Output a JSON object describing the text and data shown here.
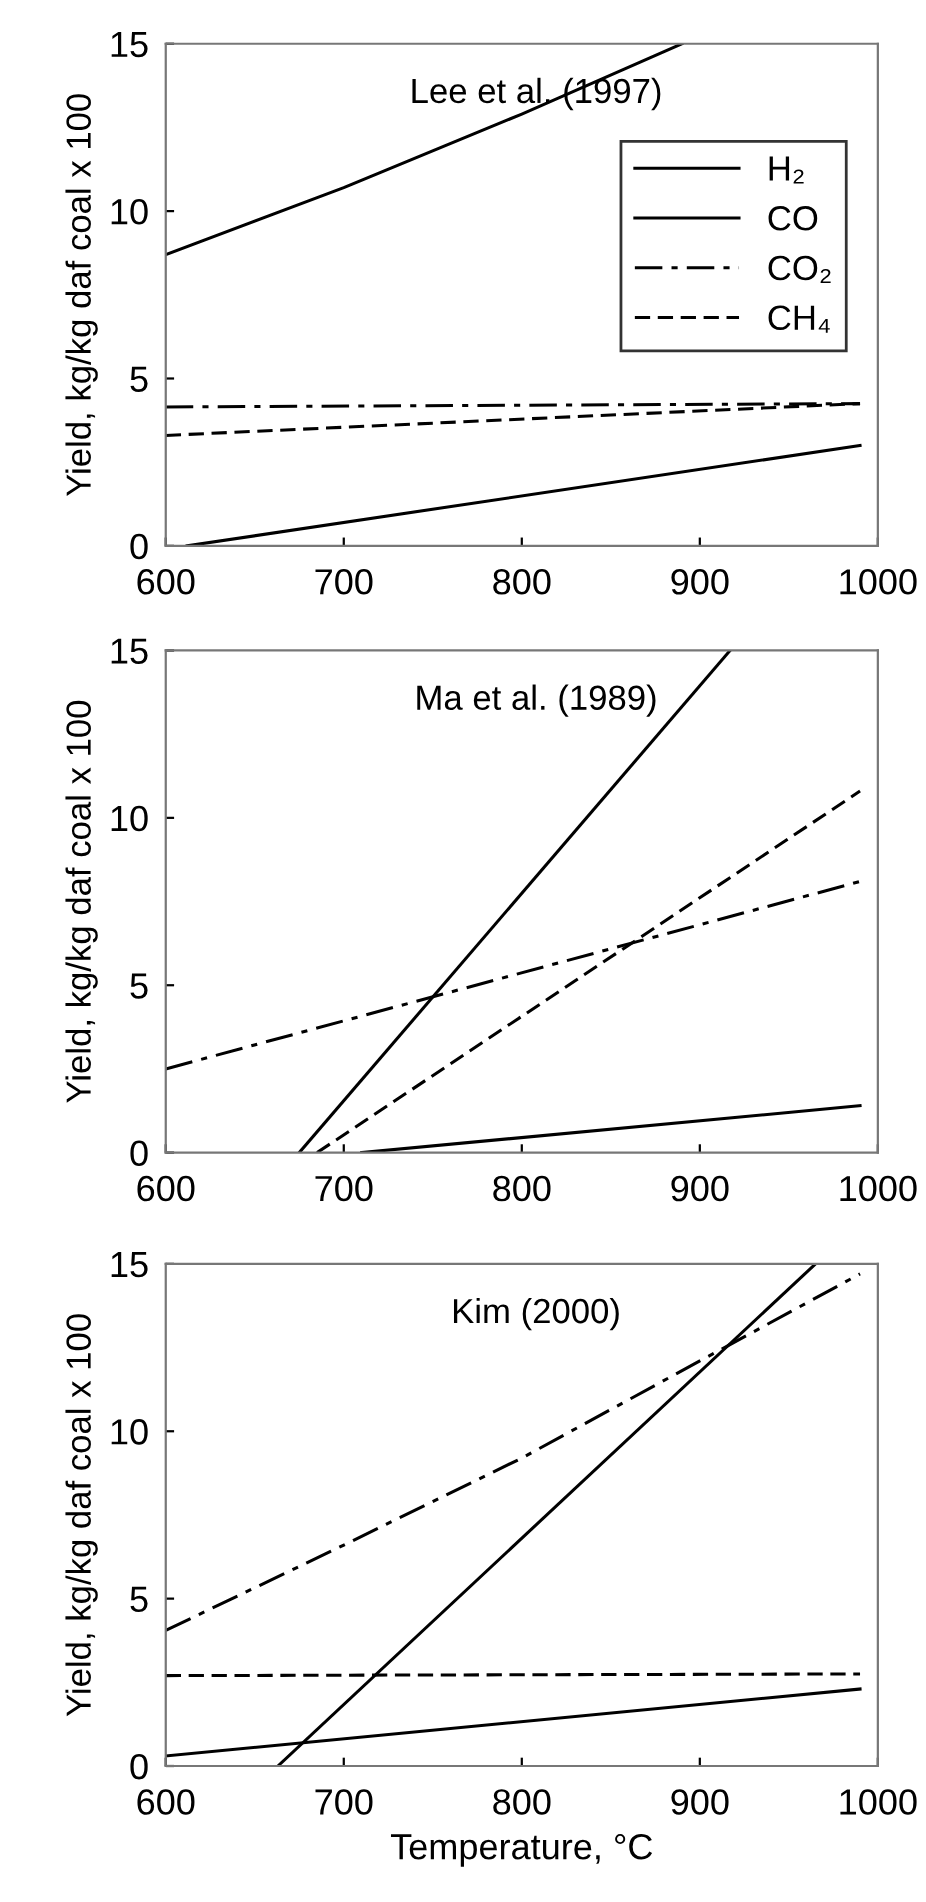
{
  "chart_data": [
    {
      "type": "line",
      "ylabel": "Yield, kg/kg daf coal x 100",
      "annotations": [
        "Lee et al. (1997)"
      ],
      "xlim": [
        600,
        1000
      ],
      "ylim": [
        0,
        15
      ],
      "xticks": [
        600,
        700,
        800,
        900,
        1000
      ],
      "yticks": [
        0,
        5,
        10,
        15
      ],
      "grid": false,
      "legend": "top right",
      "marker": "none",
      "series": [
        {
          "name": "H₂",
          "color": "#000000",
          "line_style": "solid",
          "x": [
            612,
            990
          ],
          "values": [
            0,
            3.0
          ]
        },
        {
          "name": "CO",
          "color": "#000000",
          "line_style": "solid",
          "x": [
            600,
            700,
            800,
            890
          ],
          "values": [
            8.7,
            10.7,
            12.9,
            15.0
          ]
        },
        {
          "name": "CO₂",
          "color": "#000000",
          "line_style": "dashdot",
          "x": [
            600,
            990
          ],
          "values": [
            4.15,
            4.25
          ]
        },
        {
          "name": "CH₄",
          "color": "#000000",
          "line_style": "dashed",
          "x": [
            600,
            990
          ],
          "values": [
            3.3,
            4.25
          ]
        }
      ]
    },
    {
      "type": "line",
      "ylabel": "Yield, kg/kg daf coal x 100",
      "annotations": [
        "Ma et al. (1989)"
      ],
      "xlim": [
        600,
        1000
      ],
      "ylim": [
        0,
        15
      ],
      "xticks": [
        600,
        700,
        800,
        900,
        1000
      ],
      "yticks": [
        0,
        5,
        10,
        15
      ],
      "grid": false,
      "legend": false,
      "marker": "none",
      "series": [
        {
          "color": "#000000",
          "line_style": "solid",
          "x": [
            710,
            990
          ],
          "values": [
            0,
            1.4
          ]
        },
        {
          "color": "#000000",
          "line_style": "solid",
          "x": [
            675,
            917
          ],
          "values": [
            0,
            15
          ]
        },
        {
          "color": "#000000",
          "line_style": "dashdot",
          "x": [
            600,
            990
          ],
          "values": [
            2.5,
            8.1
          ]
        },
        {
          "color": "#000000",
          "line_style": "dashed",
          "x": [
            685,
            990
          ],
          "values": [
            0,
            10.8
          ]
        }
      ]
    },
    {
      "type": "line",
      "ylabel": "Yield, kg/kg daf coal x 100",
      "xlabel": "Temperature, °C",
      "annotations": [
        "Kim (2000)"
      ],
      "xlim": [
        600,
        1000
      ],
      "ylim": [
        0,
        15
      ],
      "xticks": [
        600,
        700,
        800,
        900,
        1000
      ],
      "yticks": [
        0,
        5,
        10,
        15
      ],
      "grid": false,
      "legend": false,
      "marker": "none",
      "series": [
        {
          "color": "#000000",
          "line_style": "solid",
          "x": [
            600,
            990
          ],
          "values": [
            0.3,
            2.3
          ]
        },
        {
          "color": "#000000",
          "line_style": "solid",
          "x": [
            663,
            965
          ],
          "values": [
            0,
            15
          ]
        },
        {
          "color": "#000000",
          "line_style": "dashdot",
          "x": [
            600,
            700,
            800,
            900,
            990
          ],
          "values": [
            4.05,
            6.6,
            9.2,
            12.1,
            14.7
          ]
        },
        {
          "color": "#000000",
          "line_style": "dashed",
          "x": [
            600,
            990
          ],
          "values": [
            2.7,
            2.75
          ]
        }
      ]
    }
  ]
}
